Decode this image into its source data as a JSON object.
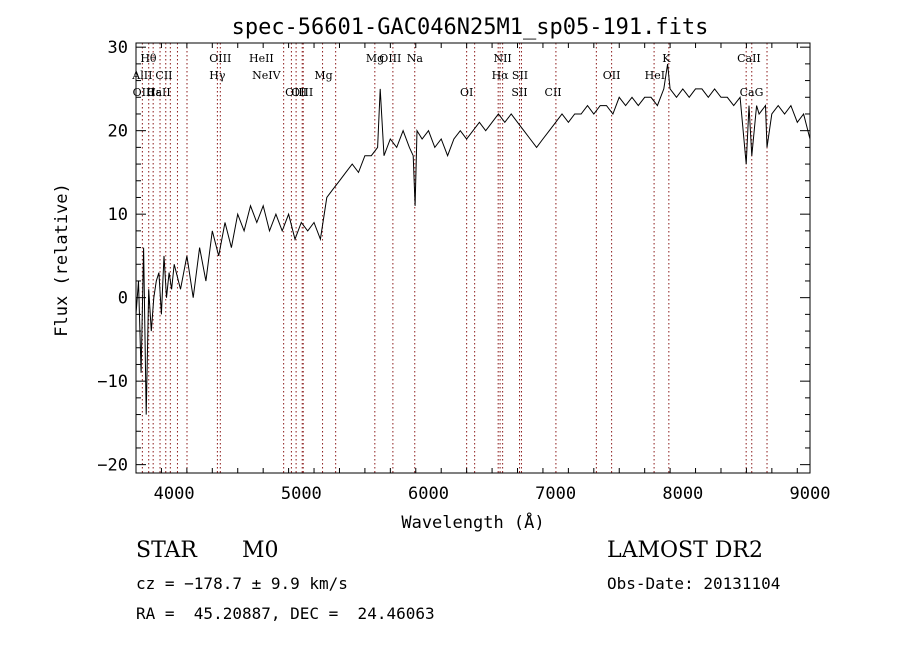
{
  "chart_data": {
    "type": "line",
    "title": "spec-56601-GAC046N25M1_sp05-191.fits",
    "xlabel": "Wavelength (Å)",
    "ylabel": "Flux (relative)",
    "xlim": [
      3700,
      9000
    ],
    "ylim": [
      -21,
      30.5
    ],
    "x_ticks": [
      4000,
      5000,
      6000,
      7000,
      8000,
      9000
    ],
    "y_ticks": [
      -20,
      -10,
      0,
      10,
      20,
      30
    ],
    "grid": false,
    "series": [
      {
        "x": [
          3700,
          3720,
          3740,
          3760,
          3780,
          3800,
          3820,
          3840,
          3860,
          3880,
          3900,
          3920,
          3940,
          3960,
          3980,
          4000,
          4050,
          4100,
          4150,
          4200,
          4250,
          4300,
          4350,
          4400,
          4450,
          4500,
          4550,
          4600,
          4650,
          4700,
          4750,
          4800,
          4850,
          4900,
          4950,
          5000,
          5050,
          5100,
          5150,
          5200,
          5250,
          5300,
          5350,
          5400,
          5450,
          5500,
          5550,
          5600,
          5620,
          5650,
          5700,
          5750,
          5800,
          5850,
          5880,
          5895,
          5910,
          5950,
          6000,
          6050,
          6100,
          6150,
          6200,
          6250,
          6300,
          6350,
          6400,
          6450,
          6500,
          6550,
          6600,
          6650,
          6700,
          6750,
          6800,
          6850,
          6900,
          6950,
          7000,
          7050,
          7100,
          7150,
          7200,
          7250,
          7300,
          7350,
          7400,
          7450,
          7500,
          7550,
          7600,
          7650,
          7700,
          7750,
          7800,
          7850,
          7880,
          7900,
          7950,
          8000,
          8050,
          8100,
          8150,
          8200,
          8250,
          8300,
          8350,
          8400,
          8450,
          8498,
          8520,
          8542,
          8580,
          8600,
          8650,
          8662,
          8700,
          8750,
          8800,
          8850,
          8900,
          8950,
          9000
        ],
        "y": [
          -2,
          2,
          -9,
          6,
          -14,
          1,
          -4,
          0,
          2,
          3,
          -2,
          5,
          0,
          3,
          1,
          4,
          1,
          5,
          0,
          6,
          2,
          8,
          5,
          9,
          6,
          10,
          8,
          11,
          9,
          11,
          8,
          10,
          8,
          10,
          7,
          9,
          8,
          9,
          7,
          12,
          13,
          14,
          15,
          16,
          15,
          17,
          17,
          18,
          25,
          17,
          19,
          18,
          20,
          18,
          17,
          11,
          20,
          19,
          20,
          18,
          19,
          17,
          19,
          20,
          19,
          20,
          21,
          20,
          21,
          22,
          21,
          22,
          21,
          20,
          19,
          18,
          19,
          20,
          21,
          22,
          21,
          22,
          22,
          23,
          22,
          23,
          23,
          22,
          24,
          23,
          24,
          23,
          24,
          24,
          23,
          25,
          28,
          25,
          24,
          25,
          24,
          25,
          25,
          24,
          25,
          24,
          24,
          23,
          24,
          16,
          23,
          17,
          23,
          22,
          23,
          18,
          22,
          23,
          22,
          23,
          21,
          22,
          19
        ]
      }
    ],
    "line_markers": [
      {
        "label": "Hθ",
        "x": 3798,
        "row": 1
      },
      {
        "label": "AlII",
        "x": 3750,
        "row": 2
      },
      {
        "label": "CII",
        "x": 3920,
        "row": 2
      },
      {
        "label": "OIII",
        "x": 3760,
        "row": 3
      },
      {
        "label": "Hε",
        "x": 3840,
        "row": 3
      },
      {
        "label": "CaII",
        "x": 3880,
        "row": 3
      },
      {
        "label": "OIII",
        "x": 4363,
        "row": 1
      },
      {
        "label": "Hγ",
        "x": 4340,
        "row": 2
      },
      {
        "label": "HeII",
        "x": 4686,
        "row": 1
      },
      {
        "label": "NeIV",
        "x": 4725,
        "row": 2
      },
      {
        "label": "Mg",
        "x": 5175,
        "row": 2
      },
      {
        "label": "OIII",
        "x": 4959,
        "row": 3
      },
      {
        "label": "OIII",
        "x": 5007,
        "row": 3
      },
      {
        "label": "Mg",
        "x": 5580,
        "row": 1
      },
      {
        "label": "OIII",
        "x": 5700,
        "row": 1
      },
      {
        "label": "Na",
        "x": 5893,
        "row": 1
      },
      {
        "label": "OI",
        "x": 6300,
        "row": 3
      },
      {
        "label": "NII",
        "x": 6583,
        "row": 1
      },
      {
        "label": "Hα",
        "x": 6563,
        "row": 2
      },
      {
        "label": "SII",
        "x": 6720,
        "row": 2
      },
      {
        "label": "SII",
        "x": 6716,
        "row": 3
      },
      {
        "label": "CII",
        "x": 6980,
        "row": 3
      },
      {
        "label": "OII",
        "x": 7440,
        "row": 2
      },
      {
        "label": "HeI",
        "x": 7780,
        "row": 2
      },
      {
        "label": "K",
        "x": 7870,
        "row": 1
      },
      {
        "label": "CaII",
        "x": 8520,
        "row": 1
      },
      {
        "label": "CaG",
        "x": 8540,
        "row": 3
      }
    ],
    "marker_lines_x": [
      3750,
      3800,
      3835,
      3889,
      3934,
      3970,
      4026,
      4101,
      4340,
      4363,
      4861,
      4922,
      4959,
      5007,
      5015,
      5167,
      5270,
      5578,
      5720,
      5892,
      6300,
      6363,
      6548,
      6563,
      6583,
      6716,
      6731,
      7002,
      7320,
      7440,
      7774,
      7890,
      8498,
      8542,
      8662
    ]
  },
  "info": {
    "object_class": "STAR",
    "subclass": "M0",
    "survey": "LAMOST DR2",
    "cz": "cz = −178.7 ± 9.9 km/s",
    "obs_date": "Obs-Date: 20131104",
    "coords": "RA =  45.20887, DEC =  24.46063"
  }
}
